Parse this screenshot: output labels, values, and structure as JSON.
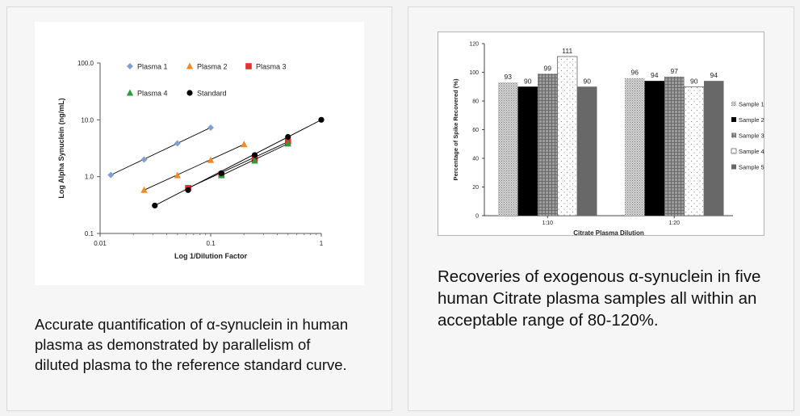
{
  "chart_data": [
    {
      "type": "scatter",
      "xlabel": "Log 1/Dilution Factor",
      "ylabel": "Log Alpha Synuclein (ng/mL)",
      "x_scale": "log",
      "y_scale": "log",
      "xlim": [
        0.01,
        1
      ],
      "ylim": [
        0.1,
        100
      ],
      "x_ticks": [
        "0.01",
        "0.1",
        "1"
      ],
      "y_ticks": [
        "0.1",
        "1.0",
        "10.0",
        "100.0"
      ],
      "legend_position": "top",
      "series": [
        {
          "name": "Plasma 1",
          "marker": "diamond",
          "color": "#7f9fcf",
          "points": [
            [
              0.0125,
              1.07
            ],
            [
              0.025,
              2.0
            ],
            [
              0.05,
              3.85
            ],
            [
              0.1,
              7.3
            ]
          ]
        },
        {
          "name": "Plasma 2",
          "marker": "triangle",
          "color": "#f08a28",
          "points": [
            [
              0.025,
              0.58
            ],
            [
              0.05,
              1.05
            ],
            [
              0.1,
              1.95
            ],
            [
              0.2,
              3.7
            ]
          ]
        },
        {
          "name": "Plasma 3",
          "marker": "square",
          "color": "#e8302a",
          "points": [
            [
              0.0625,
              0.63
            ],
            [
              0.125,
              1.1
            ],
            [
              0.25,
              2.05
            ],
            [
              0.5,
              4.1
            ]
          ]
        },
        {
          "name": "Plasma 4",
          "marker": "triangle",
          "color": "#2a9d3a",
          "points": [
            [
              0.125,
              1.05
            ],
            [
              0.25,
              1.9
            ],
            [
              0.5,
              3.8
            ]
          ]
        },
        {
          "name": "Standard",
          "marker": "circle",
          "color": "#000000",
          "points": [
            [
              0.03125,
              0.31
            ],
            [
              0.0625,
              0.58
            ],
            [
              0.125,
              1.15
            ],
            [
              0.25,
              2.4
            ],
            [
              0.5,
              5.0
            ],
            [
              1.0,
              10.0
            ]
          ]
        }
      ]
    },
    {
      "type": "bar",
      "xlabel": "Citrate Plasma Dilution",
      "ylabel": "Percentage of Spike Recovered (%)",
      "ylim": [
        0,
        120
      ],
      "y_ticks": [
        "0",
        "20",
        "40",
        "60",
        "80",
        "100",
        "120"
      ],
      "categories": [
        "1:10",
        "1:20"
      ],
      "legend_position": "right",
      "series": [
        {
          "name": "Sample 1",
          "values": [
            93,
            96
          ],
          "fill": "crosshatch-light"
        },
        {
          "name": "Sample 2",
          "values": [
            90,
            94
          ],
          "fill": "black"
        },
        {
          "name": "Sample 3",
          "values": [
            99,
            97
          ],
          "fill": "grid-gray"
        },
        {
          "name": "Sample 4",
          "values": [
            111,
            90
          ],
          "fill": "dotted-white"
        },
        {
          "name": "Sample 5",
          "values": [
            90,
            94
          ],
          "fill": "dark-gray"
        }
      ]
    }
  ],
  "captions": {
    "left": "Accurate quantification of α-synuclein in human plasma as demonstrated by parallelism of diluted plasma to the reference standard curve.",
    "right": "Recoveries of exogenous α-synuclein in five human Citrate plasma samples all within an acceptable range of 80-120%."
  }
}
